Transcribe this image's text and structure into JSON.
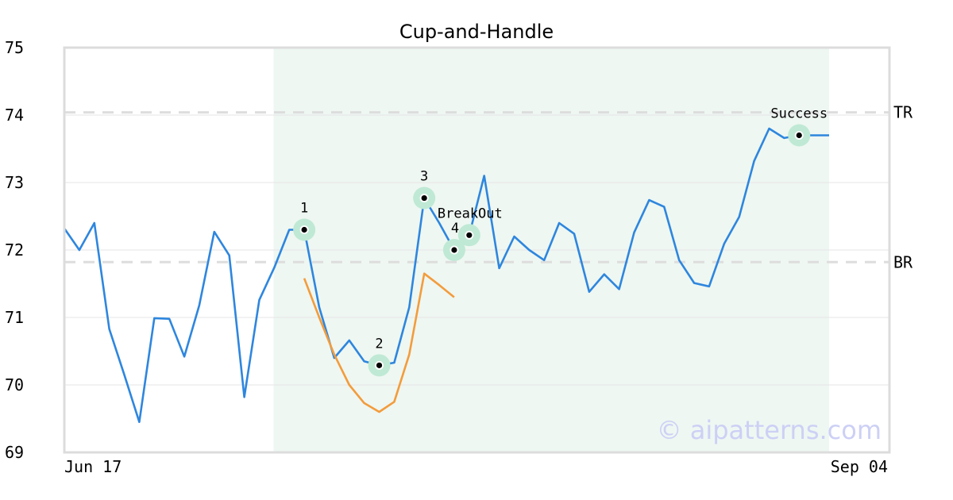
{
  "chart_data": {
    "type": "line",
    "title": "Cup-and-Handle",
    "x_start_label": "Jun 17",
    "x_end_label": "Sep 04",
    "ylim": [
      69,
      75
    ],
    "yticks": [
      69,
      70,
      71,
      72,
      73,
      74,
      75
    ],
    "grid": true,
    "series": [
      {
        "name": "",
        "color": "#2e86de",
        "values": [
          72.32,
          72.0,
          72.4,
          70.83,
          70.15,
          69.45,
          70.99,
          70.98,
          70.42,
          71.18,
          72.27,
          71.92,
          69.82,
          71.26,
          71.74,
          72.3,
          72.3,
          71.15,
          70.4,
          70.66,
          70.35,
          70.29,
          70.33,
          71.15,
          72.77,
          72.4,
          72.0,
          72.22,
          73.1,
          71.73,
          72.2,
          72.0,
          71.85,
          72.4,
          72.24,
          71.38,
          71.64,
          71.42,
          72.26,
          72.74,
          72.64,
          71.85,
          71.51,
          71.46,
          72.09,
          72.49,
          73.32,
          73.8,
          73.66,
          73.7,
          73.7,
          73.7
        ]
      },
      {
        "name": "",
        "color": "#f39c3c",
        "start_index": 16,
        "values": [
          71.58,
          71.0,
          70.45,
          70.0,
          69.73,
          69.6,
          69.75,
          70.45,
          71.65,
          71.48,
          71.3
        ]
      }
    ],
    "horizontal_lines": [
      {
        "label": "TR",
        "value": 74.04
      },
      {
        "label": "BR",
        "value": 71.82
      }
    ],
    "highlight_region": {
      "start_index": 14,
      "end_index": 51,
      "color": "#eef7f2"
    },
    "annotations": [
      {
        "label": "1",
        "index": 16,
        "value": 72.3
      },
      {
        "label": "2",
        "index": 21,
        "value": 70.29
      },
      {
        "label": "3",
        "index": 24,
        "value": 72.77
      },
      {
        "label": "4",
        "index": 26,
        "value": 72.0
      },
      {
        "label": "BreakOut",
        "index": 27,
        "value": 72.22
      },
      {
        "label": "Success",
        "index": 49,
        "value": 73.7
      }
    ],
    "marker_color": "#bfe9d4",
    "watermark": "© aipatterns.com"
  }
}
